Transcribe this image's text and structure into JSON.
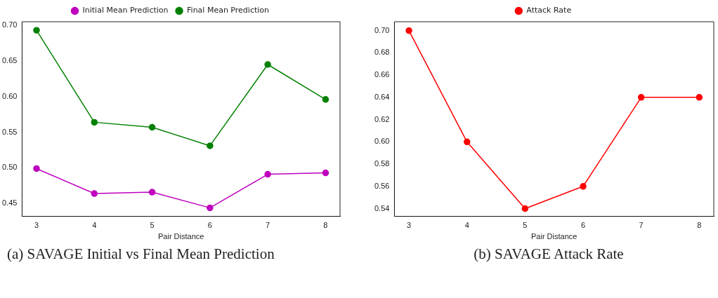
{
  "chart_data": [
    {
      "type": "line",
      "x": [
        3,
        4,
        5,
        6,
        7,
        8
      ],
      "series": [
        {
          "name": "Initial Mean Prediction",
          "color": "#bf00bf",
          "values": [
            0.499,
            0.464,
            0.466,
            0.444,
            0.491,
            0.493
          ]
        },
        {
          "name": "Final Mean Prediction",
          "color": "#008000",
          "values": [
            0.693,
            0.564,
            0.557,
            0.531,
            0.645,
            0.596
          ]
        }
      ],
      "xlim": [
        2.75,
        8.25
      ],
      "xticks": [
        3,
        4,
        5,
        6,
        7,
        8
      ],
      "ylim": [
        0.432,
        0.705
      ],
      "yticks": [
        0.45,
        {
          "value": 0.5,
          "label": "0.50"
        },
        0.55,
        {
          "value": 0.6,
          "label": "0.60"
        },
        0.65,
        {
          "value": 0.7,
          "label": "0.70"
        }
      ],
      "xlabel": "Pair Distance",
      "legend": "top",
      "marker": "circle",
      "grid": false,
      "annotations": [
        "(a) SAVAGE Initial vs Final Mean Prediction"
      ]
    },
    {
      "type": "line",
      "x": [
        3,
        4,
        5,
        6,
        7,
        8
      ],
      "series": [
        {
          "name": "Attack Rate",
          "color": "#ff0000",
          "values": [
            0.7,
            0.6,
            0.54,
            0.56,
            0.64,
            0.64
          ]
        }
      ],
      "xlim": [
        2.75,
        8.25
      ],
      "xticks": [
        3,
        4,
        5,
        6,
        7,
        8
      ],
      "ylim": [
        0.533,
        0.708
      ],
      "yticks": [
        0.54,
        0.56,
        0.58,
        {
          "value": 0.6,
          "label": "0.60"
        },
        0.62,
        0.64,
        0.66,
        0.68,
        {
          "value": 0.7,
          "label": "0.70"
        }
      ],
      "xlabel": "Pair Distance",
      "legend": "top",
      "marker": "circle",
      "grid": false,
      "annotations": [
        "(b) SAVAGE Attack Rate"
      ]
    }
  ]
}
